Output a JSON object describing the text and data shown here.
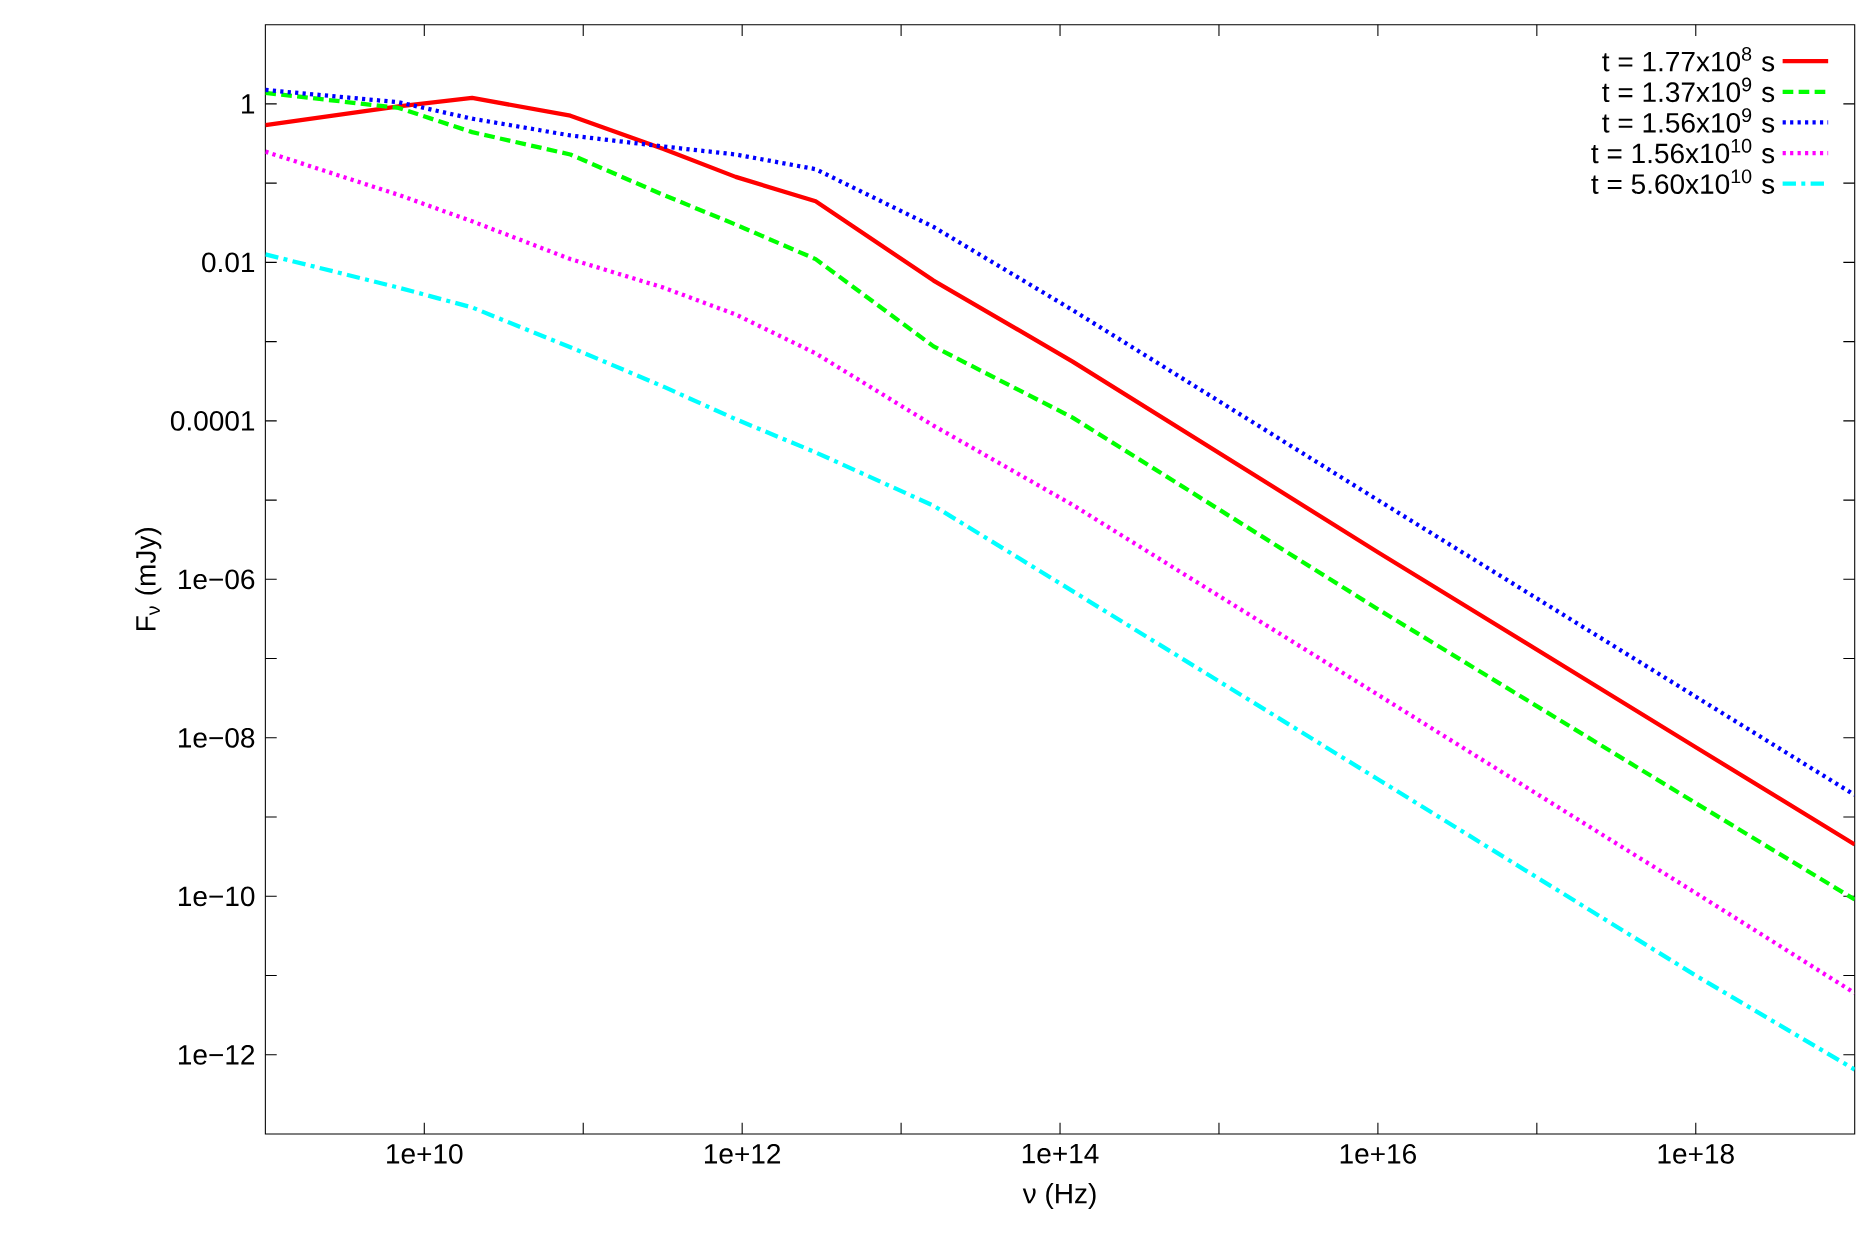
{
  "chart_data": {
    "type": "line",
    "xlabel": "ν (Hz)",
    "ylabel": "F$_{ν}$ (mJy)",
    "log": "xy",
    "grid": false,
    "legend": "top right",
    "marker": "none",
    "xlim": [
      1000000000.0,
      1e+19
    ],
    "ylim": [
      1e-13,
      10
    ],
    "xticks": [
      {
        "value": 10000000000.0,
        "label": "1e+10"
      },
      {
        "value": 100000000000.0,
        "label": null
      },
      {
        "value": 1000000000000.0,
        "label": "1e+12"
      },
      {
        "value": 10000000000000.0,
        "label": null
      },
      {
        "value": 100000000000000.0,
        "label": "1e+14"
      },
      {
        "value": 1000000000000000.0,
        "label": null
      },
      {
        "value": 1e+16,
        "label": "1e+16"
      },
      {
        "value": 1e+17,
        "label": null
      },
      {
        "value": 1e+18,
        "label": "1e+18"
      }
    ],
    "yticks": [
      {
        "value": 1e-12,
        "label": "1e−12"
      },
      {
        "value": 1e-11,
        "label": null
      },
      {
        "value": 1e-10,
        "label": "1e−10"
      },
      {
        "value": 1e-09,
        "label": null
      },
      {
        "value": 1e-08,
        "label": "1e−08"
      },
      {
        "value": 1e-07,
        "label": null
      },
      {
        "value": 1e-06,
        "label": "1e−06"
      },
      {
        "value": 1e-05,
        "label": null
      },
      {
        "value": 0.0001,
        "label": "0.0001"
      },
      {
        "value": 0.001,
        "label": null
      },
      {
        "value": 0.01,
        "label": "0.01"
      },
      {
        "value": 0.1,
        "label": null
      },
      1
    ],
    "x": [
      1000000000.0,
      6900000000.0,
      20000000000.0,
      83000000000.0,
      320000000000.0,
      910000000000.0,
      2900000000000.0,
      16000000000000.0,
      120000000000000.0,
      1e+16,
      1e+18,
      1e+19
    ],
    "series": [
      {
        "name": "t = 1.77x10$^{8}$ s",
        "color": "#ff0000",
        "line_style": "solid",
        "values": [
          0.54,
          0.93,
          1.19,
          0.71,
          0.27,
          0.12,
          0.059,
          0.0059,
          0.00056,
          2.2e-06,
          7.6e-09,
          4.5e-10
        ]
      },
      {
        "name": "t = 1.37x10$^{9}$ s",
        "color": "#00ff00",
        "line_style": "dashed",
        "values": [
          1.38,
          0.89,
          0.44,
          0.23,
          0.071,
          0.03,
          0.011,
          0.00087,
          0.00011,
          4.2e-07,
          1.5e-09,
          9.1e-11
        ]
      },
      {
        "name": "t = 1.56x10$^{9}$ s",
        "color": "#0000ff",
        "line_style": "dotted",
        "values": [
          1.5,
          1.05,
          0.65,
          0.4,
          0.29,
          0.23,
          0.15,
          0.028,
          0.0025,
          1e-05,
          3.3e-08,
          1.9e-09
        ]
      },
      {
        "name": "t = 1.56x10$^{10}$ s",
        "color": "#ff00ff",
        "line_style": "dotted",
        "values": [
          0.25,
          0.071,
          0.033,
          0.011,
          0.0048,
          0.0022,
          0.00071,
          8.7e-05,
          8.7e-06,
          3.5e-08,
          1.1e-10,
          6e-12
        ]
      },
      {
        "name": "t = 5.60x10$^{10}$ s",
        "color": "#00ffff",
        "line_style": "dashdot",
        "values": [
          0.0126,
          0.0048,
          0.0027,
          0.00085,
          0.00027,
          0.000105,
          4e-05,
          8.5e-06,
          7.1e-07,
          3e-09,
          1e-11,
          6.5e-13
        ]
      }
    ]
  }
}
